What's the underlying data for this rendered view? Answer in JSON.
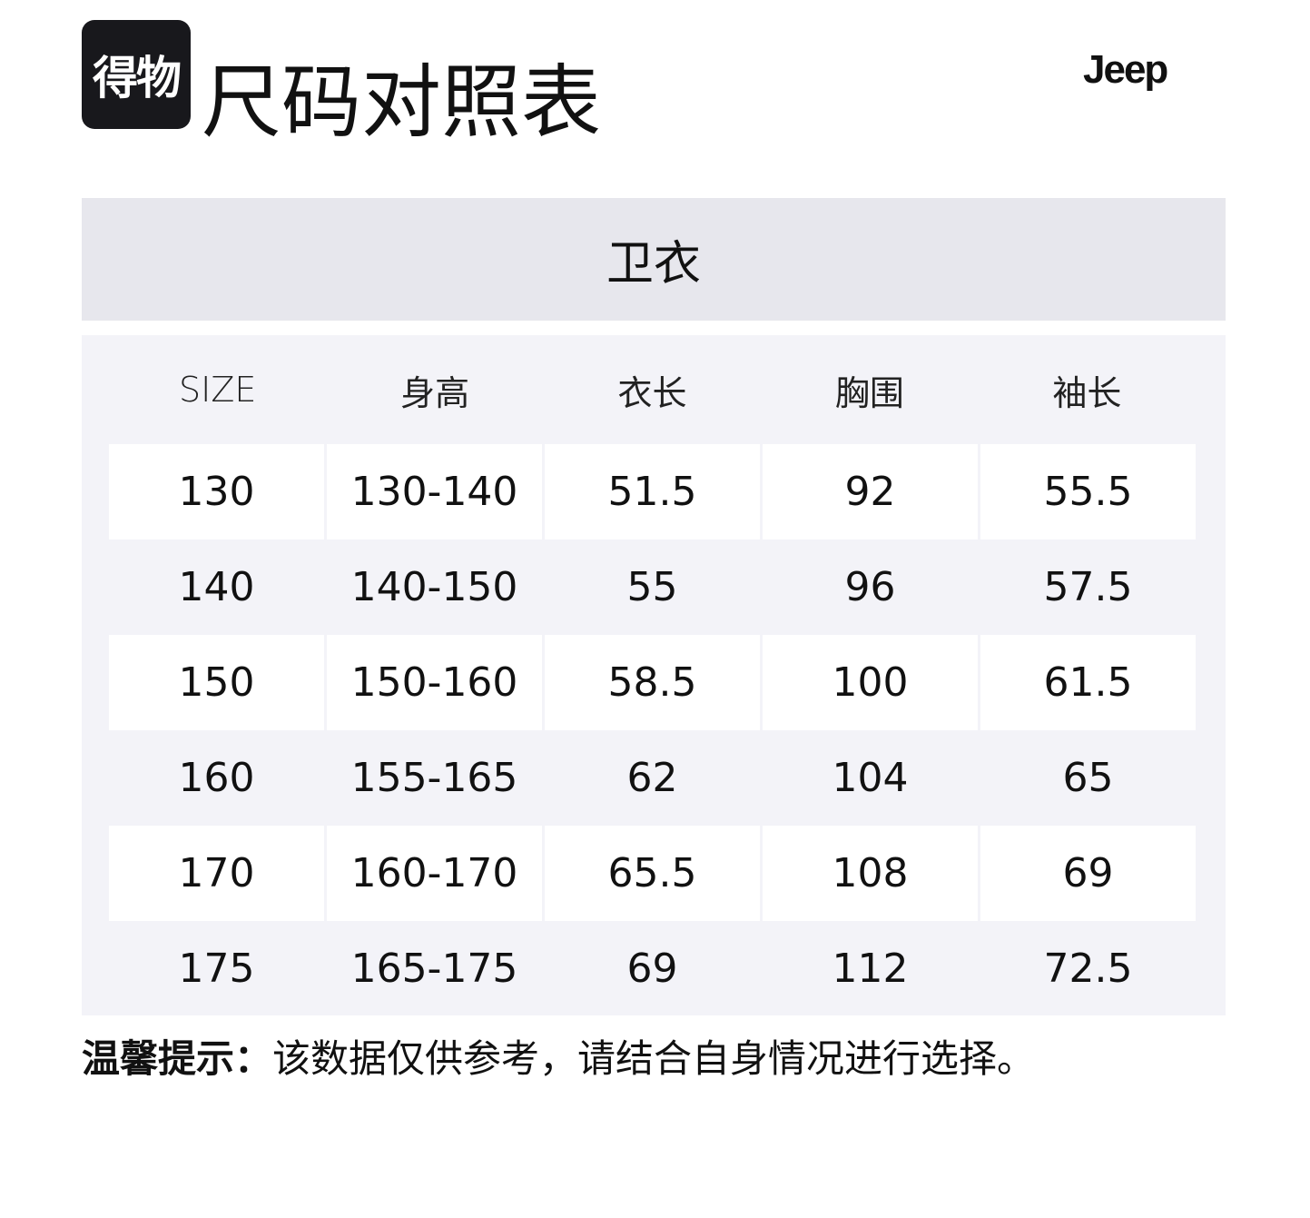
{
  "logo": {
    "text": "得物"
  },
  "title": "尺码对照表",
  "brand": "Jeep",
  "category": "卫衣",
  "table": {
    "headers": [
      "SIZE",
      "身高",
      "衣长",
      "胸围",
      "袖长"
    ],
    "rows": [
      [
        "130",
        "130-140",
        "51.5",
        "92",
        "55.5"
      ],
      [
        "140",
        "140-150",
        "55",
        "96",
        "57.5"
      ],
      [
        "150",
        "150-160",
        "58.5",
        "100",
        "61.5"
      ],
      [
        "160",
        "155-165",
        "62",
        "104",
        "65"
      ],
      [
        "170",
        "160-170",
        "65.5",
        "108",
        "69"
      ],
      [
        "175",
        "165-175",
        "69",
        "112",
        "72.5"
      ]
    ]
  },
  "tip": {
    "label": "温馨提示：",
    "text": "该数据仅供参考，请结合自身情况进行选择。"
  }
}
